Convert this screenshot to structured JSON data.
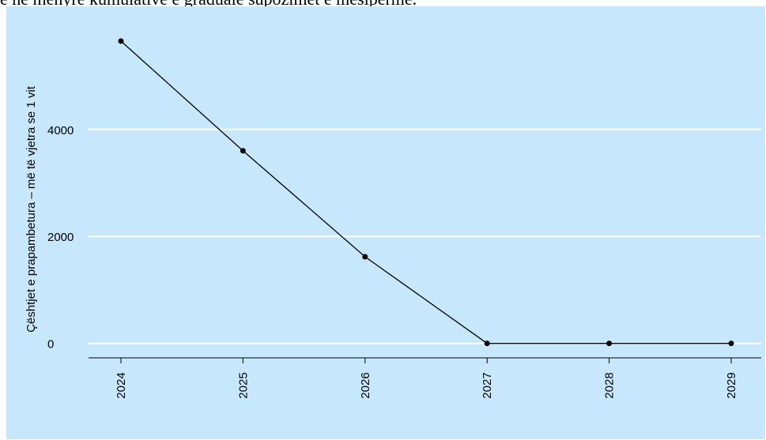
{
  "page": {
    "title_visible_text": "ë në mënyrë kumulative e gradualë supozimet e mësipërme."
  },
  "chart_data": {
    "type": "line",
    "title": "",
    "xlabel": "",
    "ylabel": "Çështjet e prapambetura – më të vjetra se 1 vit",
    "x": [
      "2024",
      "2025",
      "2026",
      "2027",
      "2028",
      "2029"
    ],
    "series": [
      {
        "values": [
          5650,
          3600,
          1620,
          0,
          0,
          0
        ]
      }
    ],
    "yticks": [
      "0",
      "2000",
      "4000"
    ],
    "ytick_values": [
      0,
      2000,
      4000
    ],
    "ylim": [
      -270,
      6300
    ],
    "grid": "horizontal",
    "legend": "none",
    "colors": {
      "background": "#c6e7fc",
      "grid": "#ffffff",
      "line": "#000000"
    }
  }
}
